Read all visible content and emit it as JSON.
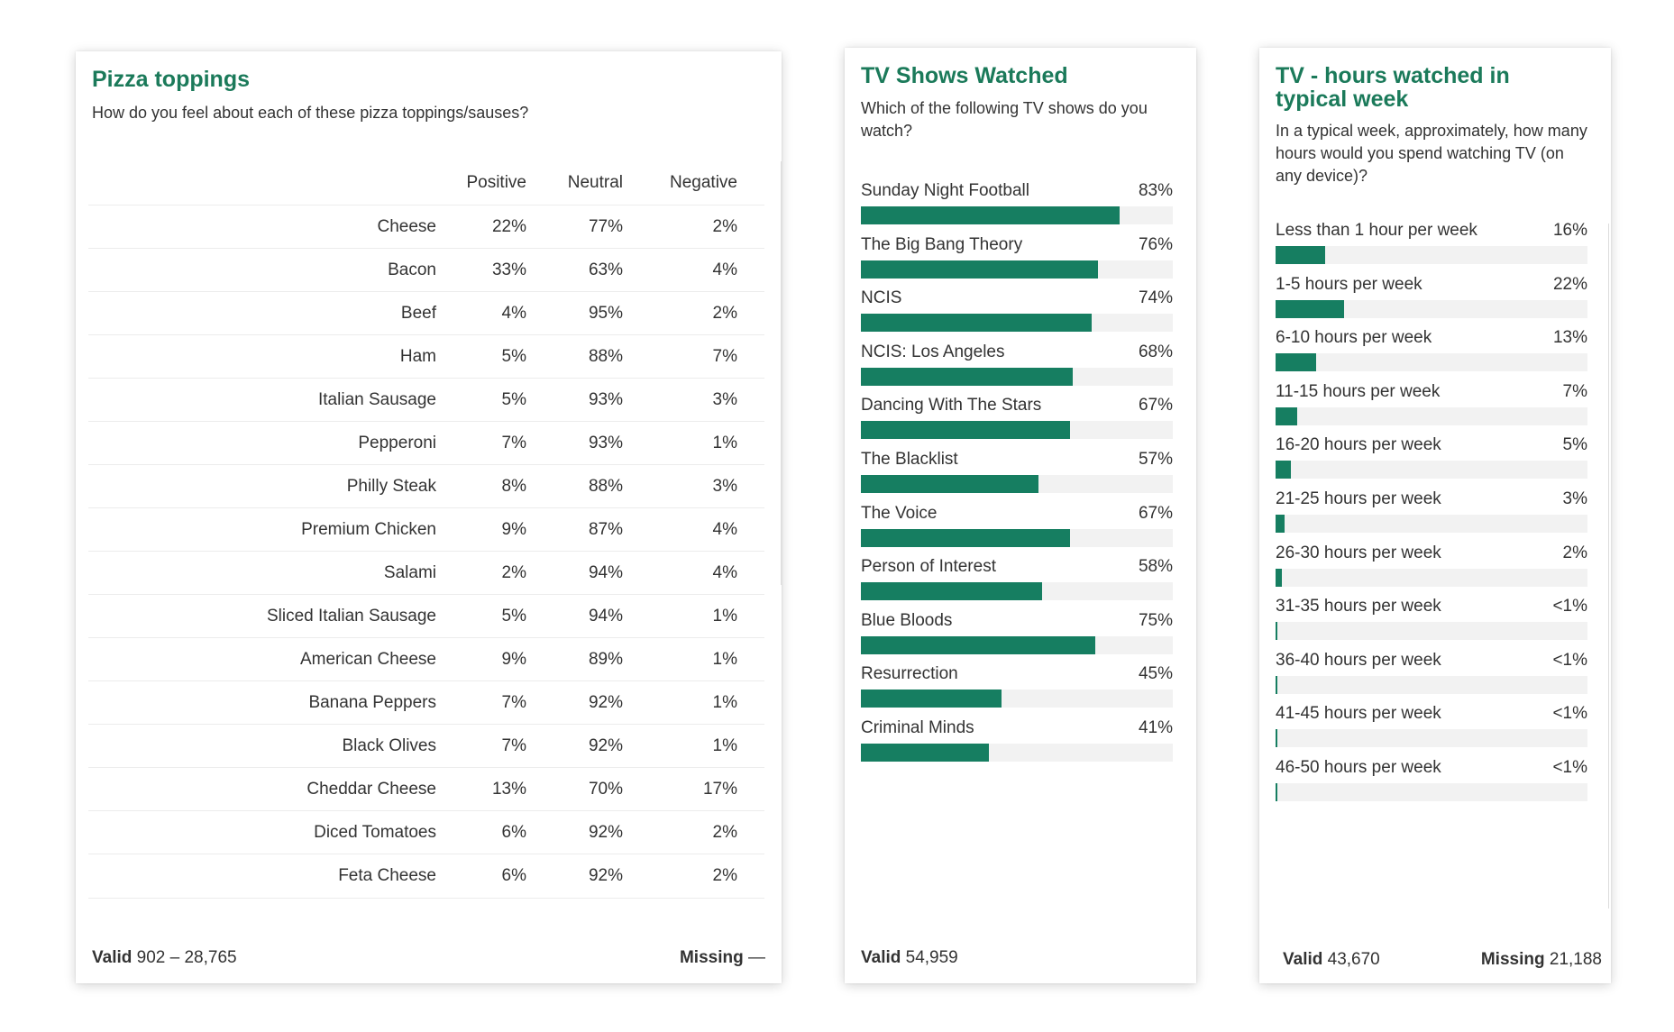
{
  "pizza": {
    "title": "Pizza toppings",
    "subtitle": "How do you feel about each of these pizza toppings/sauses?",
    "footer_valid_label": "Valid",
    "footer_valid_value": "902 – 28,765",
    "footer_missing_label": "Missing",
    "footer_missing_value": "—"
  },
  "shows": {
    "title": "TV Shows Watched",
    "subtitle": "Which of the following TV shows do you watch?",
    "footer_valid_label": "Valid",
    "footer_valid_value": "54,959"
  },
  "hours": {
    "title": "TV - hours watched in typical week",
    "subtitle": "In a typical week, approximately, how many hours would you spend watching TV (on any device)?",
    "footer_valid_label": "Valid",
    "footer_valid_value": "43,670",
    "footer_missing_label": "Missing",
    "footer_missing_value": "21,188"
  },
  "colors": {
    "accent": "#1b7a5a",
    "bar": "#167e61",
    "track": "#f2f2f2"
  },
  "chart_data": [
    {
      "type": "table",
      "title": "Pizza toppings",
      "columns": [
        "Positive",
        "Neutral",
        "Negative"
      ],
      "rows": [
        {
          "label": "Cheese",
          "values": [
            "22%",
            "77%",
            "2%"
          ]
        },
        {
          "label": "Bacon",
          "values": [
            "33%",
            "63%",
            "4%"
          ]
        },
        {
          "label": "Beef",
          "values": [
            "4%",
            "95%",
            "2%"
          ]
        },
        {
          "label": "Ham",
          "values": [
            "5%",
            "88%",
            "7%"
          ]
        },
        {
          "label": "Italian Sausage",
          "values": [
            "5%",
            "93%",
            "3%"
          ]
        },
        {
          "label": "Pepperoni",
          "values": [
            "7%",
            "93%",
            "1%"
          ]
        },
        {
          "label": "Philly Steak",
          "values": [
            "8%",
            "88%",
            "3%"
          ]
        },
        {
          "label": "Premium Chicken",
          "values": [
            "9%",
            "87%",
            "4%"
          ]
        },
        {
          "label": "Salami",
          "values": [
            "2%",
            "94%",
            "4%"
          ]
        },
        {
          "label": "Sliced Italian Sausage",
          "values": [
            "5%",
            "94%",
            "1%"
          ]
        },
        {
          "label": "American Cheese",
          "values": [
            "9%",
            "89%",
            "1%"
          ]
        },
        {
          "label": "Banana Peppers",
          "values": [
            "7%",
            "92%",
            "1%"
          ]
        },
        {
          "label": "Black Olives",
          "values": [
            "7%",
            "92%",
            "1%"
          ]
        },
        {
          "label": "Cheddar Cheese",
          "values": [
            "13%",
            "70%",
            "17%"
          ]
        },
        {
          "label": "Diced Tomatoes",
          "values": [
            "6%",
            "92%",
            "2%"
          ]
        },
        {
          "label": "Feta Cheese",
          "values": [
            "6%",
            "92%",
            "2%"
          ]
        }
      ]
    },
    {
      "type": "bar",
      "title": "TV Shows Watched",
      "orientation": "horizontal",
      "xlim": [
        0,
        100
      ],
      "categories": [
        "Sunday Night Football",
        "The Big Bang Theory",
        "NCIS",
        "NCIS: Los Angeles",
        "Dancing With The Stars",
        "The Blacklist",
        "The Voice",
        "Person of Interest",
        "Blue Bloods",
        "Resurrection",
        "Criminal Minds"
      ],
      "values": [
        83,
        76,
        74,
        68,
        67,
        57,
        67,
        58,
        75,
        45,
        41
      ],
      "labels": [
        "83%",
        "76%",
        "74%",
        "68%",
        "67%",
        "57%",
        "67%",
        "58%",
        "75%",
        "45%",
        "41%"
      ]
    },
    {
      "type": "bar",
      "title": "TV - hours watched in typical week",
      "orientation": "horizontal",
      "xlim": [
        0,
        100
      ],
      "categories": [
        "Less than 1 hour per week",
        "1-5 hours per week",
        "6-10 hours per week",
        "11-15 hours per week",
        "16-20 hours per week",
        "21-25 hours per week",
        "26-30 hours per week",
        "31-35 hours per week",
        "36-40 hours per week",
        "41-45 hours per week",
        "46-50 hours per week"
      ],
      "values": [
        16,
        22,
        13,
        7,
        5,
        3,
        2,
        0.5,
        0.5,
        0.2,
        0.2
      ],
      "labels": [
        "16%",
        "22%",
        "13%",
        "7%",
        "5%",
        "3%",
        "2%",
        "<1%",
        "<1%",
        "<1%",
        "<1%"
      ]
    }
  ]
}
